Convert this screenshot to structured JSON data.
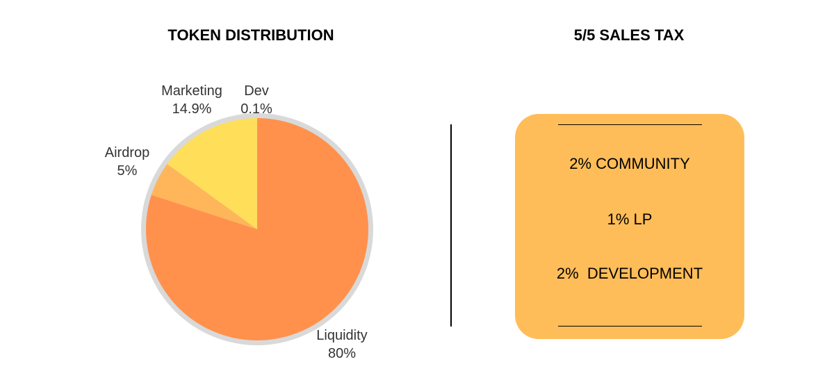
{
  "left_panel": {
    "title": "TOKEN DISTRIBUTION"
  },
  "right_panel": {
    "title": "5/5 SALES TAX",
    "items": [
      "2% COMMUNITY",
      "1% LP",
      "2%  DEVELOPMENT"
    ]
  },
  "colors": {
    "liquidity": "#ff914d",
    "airdrop": "#ffb65a",
    "marketing": "#ffde59",
    "dev": "#ffde59",
    "pie_rim": "#d9d9d9",
    "tax_box": "#ffbd59"
  },
  "chart_data": {
    "type": "pie",
    "title": "TOKEN DISTRIBUTION",
    "slices": [
      {
        "label": "Liquidity",
        "value": 80,
        "value_label": "80%"
      },
      {
        "label": "Airdrop",
        "value": 5,
        "value_label": "5%"
      },
      {
        "label": "Marketing",
        "value": 14.9,
        "value_label": "14.9%"
      },
      {
        "label": "Dev",
        "value": 0.1,
        "value_label": "0.1%"
      }
    ]
  }
}
